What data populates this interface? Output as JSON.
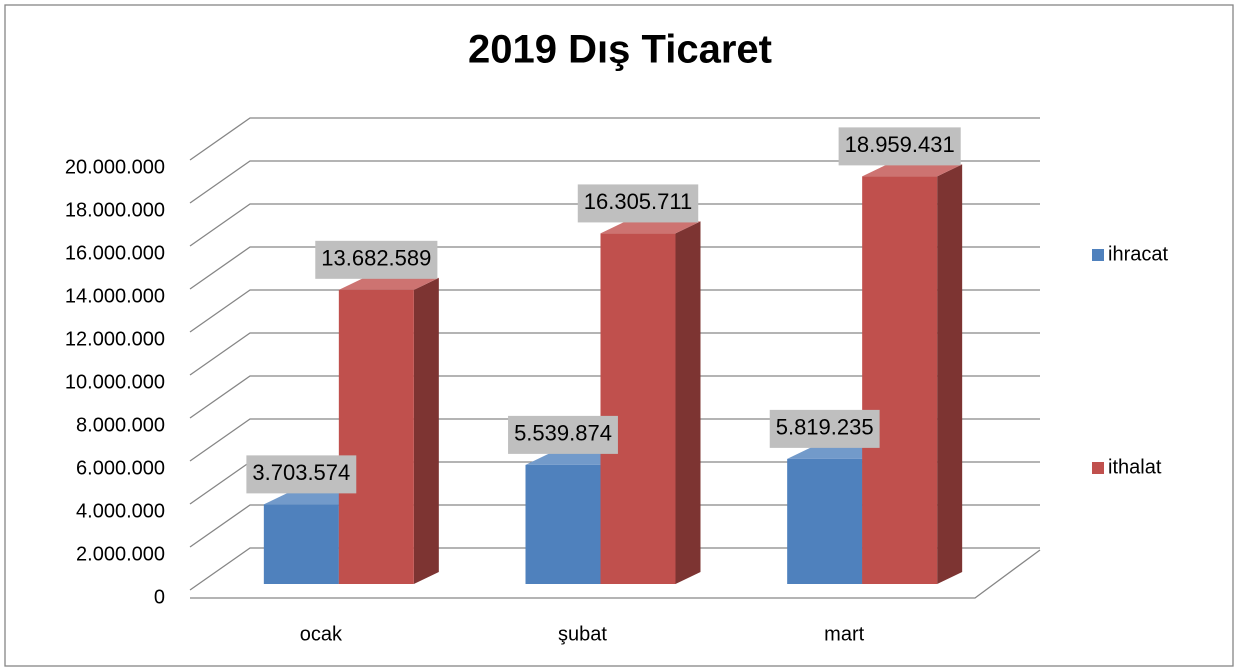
{
  "chart_data": {
    "type": "bar3d",
    "title": "2019 Dış Ticaret",
    "categories": [
      "ocak",
      "şubat",
      "mart"
    ],
    "series": [
      {
        "name": "ihracat",
        "color": "#4f81bd",
        "values": [
          3703574,
          5539874,
          5819235
        ],
        "value_labels": [
          "3.703.574",
          "5.539.874",
          "5.819.235"
        ]
      },
      {
        "name": "ithalat",
        "color": "#c0504d",
        "values": [
          13682589,
          16305711,
          18959431
        ],
        "value_labels": [
          "13.682.589",
          "16.305.711",
          "18.959.431"
        ]
      }
    ],
    "ylim": [
      0,
      20000000
    ],
    "yticks": [
      0,
      {
        "value": 2000000,
        "label": "2.000.000"
      },
      {
        "value": 4000000,
        "label": "4.000.000"
      },
      {
        "value": 6000000,
        "label": "6.000.000"
      },
      {
        "value": 8000000,
        "label": "8.000.000"
      },
      {
        "value": 10000000,
        "label": "10.000.000"
      },
      {
        "value": 12000000,
        "label": "12.000.000"
      },
      {
        "value": 14000000,
        "label": "14.000.000"
      },
      {
        "value": 16000000,
        "label": "16.000.000"
      },
      {
        "value": 18000000,
        "label": "18.000.000"
      },
      {
        "value": 20000000,
        "label": "20.000.000"
      }
    ],
    "grid": true,
    "legend": "right"
  }
}
